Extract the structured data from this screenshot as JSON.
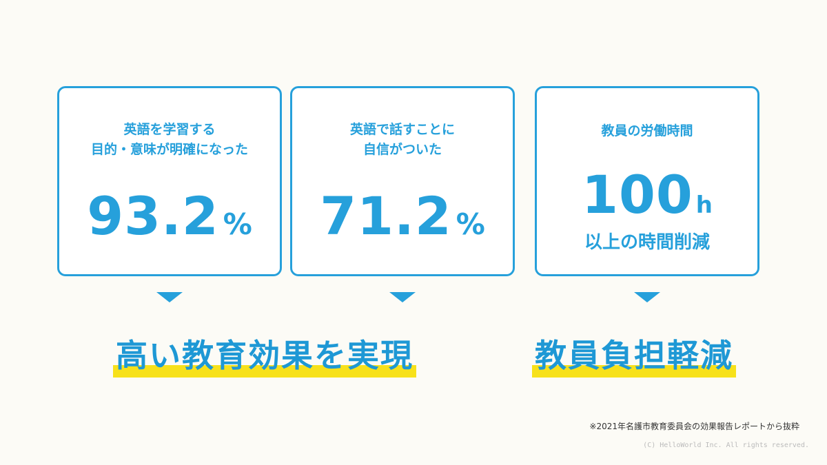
{
  "cards": [
    {
      "label": "英語を学習する\n目的・意味が明確になった",
      "value": "93.2",
      "unit": "%"
    },
    {
      "label": "英語で話すことに\n自信がついた",
      "value": "71.2",
      "unit": "%"
    },
    {
      "label": "教員の労働時間",
      "value": "100",
      "unit": "h",
      "sub": "以上の時間削減"
    }
  ],
  "headlines": {
    "left": "高い教育効果を実現",
    "right": "教員負担軽減"
  },
  "source_note": "※2021年名護市教育委員会の効果報告レポートから抜粋",
  "copyright": "(C) HelloWorld Inc. All rights reserved.",
  "colors": {
    "accent": "#26a0db",
    "highlight": "#f7e11b",
    "background": "#fcfbf6"
  }
}
